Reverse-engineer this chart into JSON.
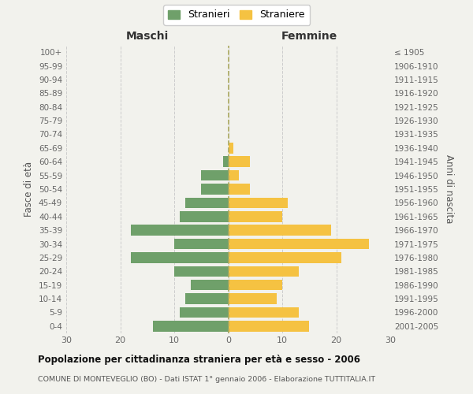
{
  "age_groups": [
    "0-4",
    "5-9",
    "10-14",
    "15-19",
    "20-24",
    "25-29",
    "30-34",
    "35-39",
    "40-44",
    "45-49",
    "50-54",
    "55-59",
    "60-64",
    "65-69",
    "70-74",
    "75-79",
    "80-84",
    "85-89",
    "90-94",
    "95-99",
    "100+"
  ],
  "birth_years": [
    "2001-2005",
    "1996-2000",
    "1991-1995",
    "1986-1990",
    "1981-1985",
    "1976-1980",
    "1971-1975",
    "1966-1970",
    "1961-1965",
    "1956-1960",
    "1951-1955",
    "1946-1950",
    "1941-1945",
    "1936-1940",
    "1931-1935",
    "1926-1930",
    "1921-1925",
    "1916-1920",
    "1911-1915",
    "1906-1910",
    "≤ 1905"
  ],
  "maschi": [
    14,
    9,
    8,
    7,
    10,
    18,
    10,
    18,
    9,
    8,
    5,
    5,
    1,
    0,
    0,
    0,
    0,
    0,
    0,
    0,
    0
  ],
  "femmine": [
    15,
    13,
    9,
    10,
    13,
    21,
    26,
    19,
    10,
    11,
    4,
    2,
    4,
    1,
    0,
    0,
    0,
    0,
    0,
    0,
    0
  ],
  "maschi_color": "#6fa06a",
  "femmine_color": "#f5c242",
  "title": "Popolazione per cittadinanza straniera per età e sesso - 2006",
  "subtitle": "COMUNE DI MONTEVEGLIO (BO) - Dati ISTAT 1° gennaio 2006 - Elaborazione TUTTITALIA.IT",
  "header_left": "Maschi",
  "header_right": "Femmine",
  "ylabel_left": "Fasce di età",
  "ylabel_right": "Anni di nascita",
  "legend_stranieri": "Stranieri",
  "legend_straniere": "Straniere",
  "xlim": 30,
  "background_color": "#f2f2ed"
}
